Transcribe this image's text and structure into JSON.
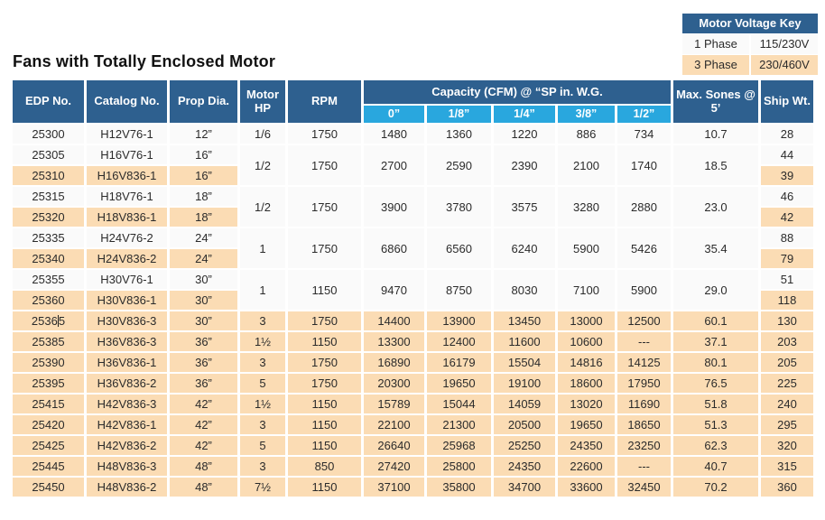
{
  "title": "Fans with Totally Enclosed Motor",
  "colors": {
    "dark_blue": "#2E608F",
    "light_blue": "#29A7DE",
    "peach": "#FBDCB4",
    "row_bg": "#FAFAFA"
  },
  "voltage_key": {
    "title": "Motor Voltage Key",
    "rows": [
      {
        "label": "1 Phase",
        "value": "115/230V",
        "shaded": false
      },
      {
        "label": "3 Phase",
        "value": "230/460V",
        "shaded": true
      }
    ]
  },
  "table": {
    "headers": {
      "edp": "EDP No.",
      "catalog": "Catalog No.",
      "prop": "Prop Dia.",
      "hp": "Motor HP",
      "rpm": "RPM",
      "capacity_group": "Capacity (CFM) @ “SP in. W.G.",
      "sub": [
        "0”",
        "1/8”",
        "1/4”",
        "3/8”",
        "1/2”"
      ],
      "sones": "Max. Sones @ 5’",
      "ship": "Ship Wt."
    },
    "groups": [
      {
        "hp": "1/6",
        "rpm": "1750",
        "cfm": [
          "1480",
          "1360",
          "1220",
          "886",
          "734"
        ],
        "sones": "10.7",
        "rows": [
          {
            "edp": "25300",
            "catalog": "H12V76-1",
            "prop": "12”",
            "ship": "28",
            "shaded": false
          }
        ]
      },
      {
        "hp": "1/2",
        "rpm": "1750",
        "cfm": [
          "2700",
          "2590",
          "2390",
          "2100",
          "1740"
        ],
        "sones": "18.5",
        "rows": [
          {
            "edp": "25305",
            "catalog": "H16V76-1",
            "prop": "16”",
            "ship": "44",
            "shaded": false
          },
          {
            "edp": "25310",
            "catalog": "H16V836-1",
            "prop": "16”",
            "ship": "39",
            "shaded": true
          }
        ]
      },
      {
        "hp": "1/2",
        "rpm": "1750",
        "cfm": [
          "3900",
          "3780",
          "3575",
          "3280",
          "2880"
        ],
        "sones": "23.0",
        "rows": [
          {
            "edp": "25315",
            "catalog": "H18V76-1",
            "prop": "18”",
            "ship": "46",
            "shaded": false
          },
          {
            "edp": "25320",
            "catalog": "H18V836-1",
            "prop": "18”",
            "ship": "42",
            "shaded": true
          }
        ]
      },
      {
        "hp": "1",
        "rpm": "1750",
        "cfm": [
          "6860",
          "6560",
          "6240",
          "5900",
          "5426"
        ],
        "sones": "35.4",
        "rows": [
          {
            "edp": "25335",
            "catalog": "H24V76-2",
            "prop": "24”",
            "ship": "88",
            "shaded": false
          },
          {
            "edp": "25340",
            "catalog": "H24V836-2",
            "prop": "24”",
            "ship": "79",
            "shaded": true
          }
        ]
      },
      {
        "hp": "1",
        "rpm": "1150",
        "cfm": [
          "9470",
          "8750",
          "8030",
          "7100",
          "5900"
        ],
        "sones": "29.0",
        "rows": [
          {
            "edp": "25355",
            "catalog": "H30V76-1",
            "prop": "30”",
            "ship": "51",
            "shaded": false
          },
          {
            "edp": "25360",
            "catalog": "H30V836-1",
            "prop": "30”",
            "ship": "118",
            "shaded": true
          }
        ]
      },
      {
        "hp": "3",
        "rpm": "1750",
        "cfm": [
          "14400",
          "13900",
          "13450",
          "13000",
          "12500"
        ],
        "sones": "60.1",
        "rows": [
          {
            "edp": "25365",
            "catalog": "H30V836-3",
            "prop": "30”",
            "ship": "130",
            "shaded": true,
            "caret_at": 4
          }
        ]
      },
      {
        "hp": "1½",
        "rpm": "1150",
        "cfm": [
          "13300",
          "12400",
          "11600",
          "10600",
          "---"
        ],
        "sones": "37.1",
        "rows": [
          {
            "edp": "25385",
            "catalog": "H36V836-3",
            "prop": "36”",
            "ship": "203",
            "shaded": true
          }
        ]
      },
      {
        "hp": "3",
        "rpm": "1750",
        "cfm": [
          "16890",
          "16179",
          "15504",
          "14816",
          "14125"
        ],
        "sones": "80.1",
        "rows": [
          {
            "edp": "25390",
            "catalog": "H36V836-1",
            "prop": "36”",
            "ship": "205",
            "shaded": true
          }
        ]
      },
      {
        "hp": "5",
        "rpm": "1750",
        "cfm": [
          "20300",
          "19650",
          "19100",
          "18600",
          "17950"
        ],
        "sones": "76.5",
        "rows": [
          {
            "edp": "25395",
            "catalog": "H36V836-2",
            "prop": "36”",
            "ship": "225",
            "shaded": true
          }
        ]
      },
      {
        "hp": "1½",
        "rpm": "1150",
        "cfm": [
          "15789",
          "15044",
          "14059",
          "13020",
          "11690"
        ],
        "sones": "51.8",
        "rows": [
          {
            "edp": "25415",
            "catalog": "H42V836-3",
            "prop": "42”",
            "ship": "240",
            "shaded": true
          }
        ]
      },
      {
        "hp": "3",
        "rpm": "1150",
        "cfm": [
          "22100",
          "21300",
          "20500",
          "19650",
          "18650"
        ],
        "sones": "51.3",
        "rows": [
          {
            "edp": "25420",
            "catalog": "H42V836-1",
            "prop": "42”",
            "ship": "295",
            "shaded": true
          }
        ]
      },
      {
        "hp": "5",
        "rpm": "1150",
        "cfm": [
          "26640",
          "25968",
          "25250",
          "24350",
          "23250"
        ],
        "sones": "62.3",
        "rows": [
          {
            "edp": "25425",
            "catalog": "H42V836-2",
            "prop": "42”",
            "ship": "320",
            "shaded": true
          }
        ]
      },
      {
        "hp": "3",
        "rpm": "850",
        "cfm": [
          "27420",
          "25800",
          "24350",
          "22600",
          "---"
        ],
        "sones": "40.7",
        "rows": [
          {
            "edp": "25445",
            "catalog": "H48V836-3",
            "prop": "48”",
            "ship": "315",
            "shaded": true
          }
        ]
      },
      {
        "hp": "7½",
        "rpm": "1150",
        "cfm": [
          "37100",
          "35800",
          "34700",
          "33600",
          "32450"
        ],
        "sones": "70.2",
        "rows": [
          {
            "edp": "25450",
            "catalog": "H48V836-2",
            "prop": "48”",
            "ship": "360",
            "shaded": true
          }
        ]
      }
    ]
  }
}
